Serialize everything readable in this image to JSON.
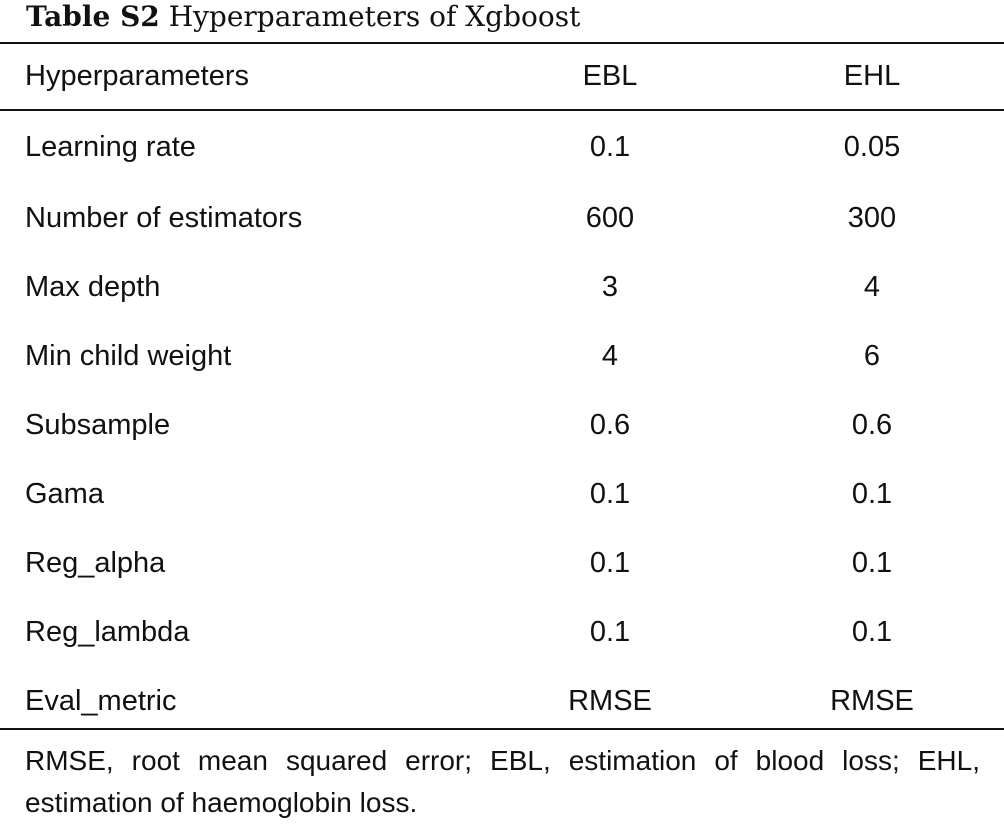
{
  "caption": {
    "label": "Table S2",
    "title": "Hyperparameters of Xgboost"
  },
  "table": {
    "headers": [
      "Hyperparameters",
      "EBL",
      "EHL"
    ],
    "rows": [
      [
        "Learning rate",
        "0.1",
        "0.05"
      ],
      [
        "Number of estimators",
        "600",
        "300"
      ],
      [
        "Max depth",
        "3",
        "4"
      ],
      [
        "Min child weight",
        "4",
        "6"
      ],
      [
        "Subsample",
        "0.6",
        "0.6"
      ],
      [
        "Gama",
        "0.1",
        "0.1"
      ],
      [
        "Reg_alpha",
        "0.1",
        "0.1"
      ],
      [
        "Reg_lambda",
        "0.1",
        "0.1"
      ],
      [
        "Eval_metric",
        "RMSE",
        "RMSE"
      ]
    ]
  },
  "footnote": "RMSE, root mean squared error; EBL, estimation of blood loss; EHL, estimation of haemoglobin loss."
}
